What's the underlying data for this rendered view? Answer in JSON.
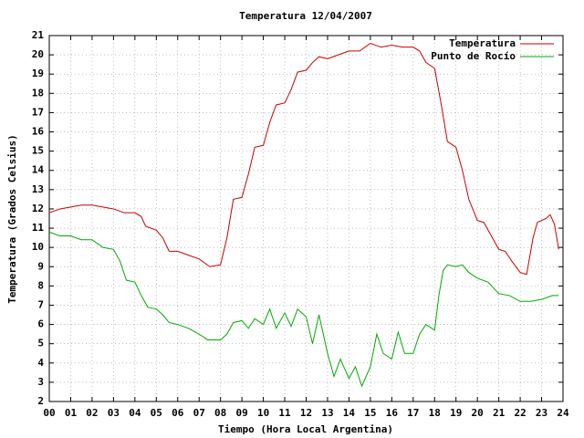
{
  "chart_data": {
    "type": "line",
    "title": "Temperatura 12/04/2007",
    "x_label": "Tiempo (Hora Local Argentina)",
    "y_label": "Temperatura (Grados Celsius)",
    "xlim": [
      0,
      24
    ],
    "ylim": [
      2,
      21
    ],
    "xticks": [
      {
        "value": 0,
        "label": "00"
      },
      {
        "value": 1,
        "label": "01"
      },
      {
        "value": 2,
        "label": "02"
      },
      {
        "value": 3,
        "label": "03"
      },
      {
        "value": 4,
        "label": "04"
      },
      {
        "value": 5,
        "label": "05"
      },
      {
        "value": 6,
        "label": "06"
      },
      {
        "value": 7,
        "label": "07"
      },
      {
        "value": 8,
        "label": "08"
      },
      {
        "value": 9,
        "label": "09"
      },
      10,
      11,
      12,
      13,
      14,
      15,
      16,
      17,
      18,
      19,
      20,
      21,
      22,
      23,
      24
    ],
    "yticks": [
      2,
      3,
      4,
      5,
      6,
      7,
      8,
      9,
      10,
      11,
      12,
      13,
      14,
      15,
      16,
      17,
      18,
      19,
      20,
      21
    ],
    "grid": true,
    "legend": "top-right",
    "series": [
      {
        "name": "Temperatura",
        "color": "#cc0000",
        "x": [
          0,
          0.25,
          0.5,
          1,
          1.5,
          2,
          2.5,
          3,
          3.5,
          4,
          4.3,
          4.5,
          5,
          5.3,
          5.6,
          6,
          6.5,
          7,
          7.5,
          8,
          8.3,
          8.6,
          9,
          9.3,
          9.6,
          10,
          10.3,
          10.6,
          11,
          11.3,
          11.6,
          12,
          12.3,
          12.6,
          13,
          13.5,
          14,
          14.5,
          15,
          15.5,
          16,
          16.5,
          17,
          17.3,
          17.6,
          18,
          18.3,
          18.6,
          19,
          19.3,
          19.6,
          20,
          20.3,
          20.6,
          21,
          21.3,
          21.6,
          22,
          22.3,
          22.6,
          22.8,
          23,
          23.2,
          23.4,
          23.6,
          23.8
        ],
        "values": [
          11.8,
          11.9,
          12.0,
          12.1,
          12.2,
          12.2,
          12.1,
          12.0,
          11.8,
          11.8,
          11.6,
          11.1,
          10.9,
          10.5,
          9.8,
          9.8,
          9.6,
          9.4,
          9.0,
          9.1,
          10.5,
          12.5,
          12.6,
          13.8,
          15.2,
          15.3,
          16.5,
          17.4,
          17.5,
          18.2,
          19.1,
          19.2,
          19.6,
          19.9,
          19.8,
          20.0,
          20.2,
          20.2,
          20.6,
          20.4,
          20.5,
          20.4,
          20.4,
          20.2,
          19.6,
          19.3,
          17.5,
          15.5,
          15.2,
          14.0,
          12.5,
          11.4,
          11.3,
          10.7,
          9.9,
          9.8,
          9.3,
          8.7,
          8.6,
          10.5,
          11.3,
          11.4,
          11.5,
          11.7,
          11.2,
          9.9
        ]
      },
      {
        "name": "Punto de Rocío",
        "color": "#00aa00",
        "x": [
          0,
          0.5,
          1,
          1.5,
          2,
          2.5,
          3,
          3.3,
          3.6,
          4,
          4.3,
          4.6,
          5,
          5.3,
          5.6,
          6,
          6.5,
          7,
          7.4,
          8,
          8.3,
          8.6,
          9,
          9.3,
          9.6,
          10,
          10.3,
          10.6,
          11,
          11.3,
          11.6,
          12,
          12.3,
          12.6,
          13,
          13.3,
          13.6,
          14,
          14.3,
          14.6,
          15,
          15.3,
          15.6,
          16,
          16.3,
          16.6,
          17,
          17.3,
          17.6,
          18,
          18.2,
          18.4,
          18.6,
          19,
          19.3,
          19.6,
          20,
          20.5,
          21,
          21.5,
          22,
          22.5,
          23,
          23.5,
          23.8
        ],
        "values": [
          10.8,
          10.6,
          10.6,
          10.4,
          10.4,
          10.0,
          9.9,
          9.3,
          8.3,
          8.2,
          7.5,
          6.9,
          6.8,
          6.5,
          6.1,
          6.0,
          5.8,
          5.5,
          5.2,
          5.2,
          5.5,
          6.1,
          6.2,
          5.8,
          6.3,
          6.0,
          6.8,
          5.8,
          6.6,
          5.9,
          6.8,
          6.4,
          5.0,
          6.5,
          4.5,
          3.3,
          4.2,
          3.2,
          3.8,
          2.8,
          3.8,
          5.5,
          4.5,
          4.2,
          5.6,
          4.5,
          4.5,
          5.5,
          6.0,
          5.7,
          7.5,
          8.8,
          9.1,
          9.0,
          9.1,
          8.7,
          8.4,
          8.2,
          7.6,
          7.5,
          7.2,
          7.2,
          7.3,
          7.5,
          7.5
        ]
      }
    ]
  }
}
